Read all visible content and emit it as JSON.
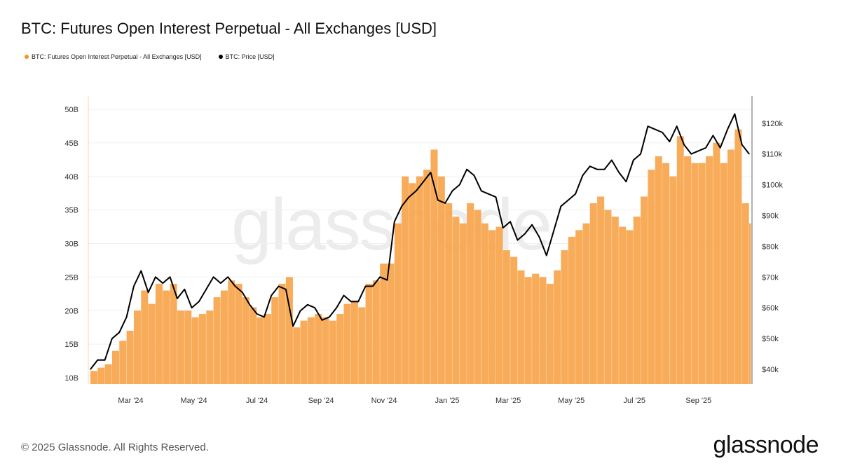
{
  "title": "BTC: Futures Open Interest Perpetual - All Exchanges [USD]",
  "legend": [
    {
      "label": "BTC: Futures Open Interest Perpetual - All Exchanges [USD]",
      "color": "#f7931a"
    },
    {
      "label": "BTC: Price [USD]",
      "color": "#000000"
    }
  ],
  "footer": "© 2025 Glassnode. All Rights Reserved.",
  "logo": "glassnode",
  "watermark": "glassnode",
  "chart_data": {
    "type": "bar+line",
    "title": "BTC: Futures Open Interest Perpetual - All Exchanges [USD]",
    "x_ticks": [
      "Mar '24",
      "May '24",
      "Jul '24",
      "Sep '24",
      "Nov '24",
      "Jan '25",
      "Mar '25",
      "May '25",
      "Jul '25",
      "Sep '25"
    ],
    "x_tick_dates": [
      "2024-03-01",
      "2024-05-01",
      "2024-07-01",
      "2024-09-01",
      "2024-11-01",
      "2025-01-01",
      "2025-03-01",
      "2025-05-01",
      "2025-07-01",
      "2025-09-01"
    ],
    "xlim": [
      "2024-01-20",
      "2025-10-22"
    ],
    "left_axis": {
      "ticks": [
        "10B",
        "15B",
        "20B",
        "25B",
        "30B",
        "35B",
        "40B",
        "45B",
        "50B"
      ],
      "ylim_billions": [
        9.2,
        51.2
      ]
    },
    "right_axis": {
      "ticks": [
        "$40k",
        "$50k",
        "$60k",
        "$70k",
        "$80k",
        "$90k",
        "$100k",
        "$110k",
        "$120k"
      ],
      "ylim_thousands_usd": [
        36,
        130
      ]
    },
    "grid": true,
    "legend_position": "top-left",
    "bar_color": "#f7a54c",
    "line_color": "#000000",
    "dates": [
      "2024-01-22",
      "2024-01-29",
      "2024-02-05",
      "2024-02-12",
      "2024-02-19",
      "2024-02-26",
      "2024-03-04",
      "2024-03-11",
      "2024-03-18",
      "2024-03-25",
      "2024-04-01",
      "2024-04-08",
      "2024-04-15",
      "2024-04-22",
      "2024-04-29",
      "2024-05-06",
      "2024-05-13",
      "2024-05-20",
      "2024-05-27",
      "2024-06-03",
      "2024-06-10",
      "2024-06-17",
      "2024-06-24",
      "2024-07-01",
      "2024-07-08",
      "2024-07-15",
      "2024-07-22",
      "2024-07-29",
      "2024-08-05",
      "2024-08-12",
      "2024-08-19",
      "2024-08-26",
      "2024-09-02",
      "2024-09-09",
      "2024-09-16",
      "2024-09-23",
      "2024-09-30",
      "2024-10-07",
      "2024-10-14",
      "2024-10-21",
      "2024-10-28",
      "2024-11-04",
      "2024-11-11",
      "2024-11-18",
      "2024-11-25",
      "2024-12-02",
      "2024-12-09",
      "2024-12-16",
      "2024-12-23",
      "2024-12-30",
      "2025-01-06",
      "2025-01-13",
      "2025-01-20",
      "2025-01-27",
      "2025-02-03",
      "2025-02-10",
      "2025-02-17",
      "2025-02-24",
      "2025-03-03",
      "2025-03-10",
      "2025-03-17",
      "2025-03-24",
      "2025-03-31",
      "2025-04-07",
      "2025-04-14",
      "2025-04-21",
      "2025-04-28",
      "2025-05-05",
      "2025-05-12",
      "2025-05-19",
      "2025-05-26",
      "2025-06-02",
      "2025-06-09",
      "2025-06-16",
      "2025-06-23",
      "2025-06-30",
      "2025-07-07",
      "2025-07-14",
      "2025-07-21",
      "2025-07-28",
      "2025-08-04",
      "2025-08-11",
      "2025-08-18",
      "2025-08-25",
      "2025-09-01",
      "2025-09-08",
      "2025-09-15",
      "2025-09-22",
      "2025-09-29",
      "2025-10-06",
      "2025-10-13",
      "2025-10-20"
    ],
    "series": [
      {
        "name": "BTC: Futures Open Interest Perpetual - All Exchanges [USD]",
        "unit": "billion USD",
        "axis": "left",
        "values": [
          11,
          11.5,
          12,
          14,
          15.5,
          17,
          20,
          23,
          21,
          24,
          23,
          24,
          20,
          20,
          19,
          19.5,
          20,
          22,
          23,
          24.5,
          24,
          22,
          20.5,
          19,
          19.5,
          22,
          24,
          25,
          17.5,
          18.5,
          19,
          19.5,
          19,
          18.5,
          19.5,
          21,
          21.5,
          20.5,
          24,
          24.5,
          27,
          27,
          33,
          40,
          39,
          40,
          41,
          44,
          40,
          36,
          34,
          33,
          36,
          35,
          33,
          32,
          32.5,
          29,
          28,
          26,
          25,
          25.5,
          25,
          24,
          26,
          29,
          31,
          32,
          33,
          36,
          37,
          35,
          34,
          32.5,
          32,
          34,
          37,
          41,
          43,
          42,
          40,
          46,
          43,
          42,
          42,
          43,
          45,
          42,
          44,
          47,
          36,
          33
        ]
      },
      {
        "name": "BTC: Price [USD]",
        "unit": "thousand USD",
        "axis": "right",
        "values": [
          40,
          43,
          43,
          50,
          52,
          57,
          67,
          72,
          65,
          70,
          68,
          70,
          63,
          66,
          60,
          62,
          66,
          70,
          68,
          70,
          67,
          65,
          61,
          58,
          57,
          64,
          67,
          66,
          54,
          59,
          61,
          60,
          56,
          57,
          60,
          64,
          62,
          62,
          67,
          67,
          70,
          69,
          88,
          93,
          96,
          98,
          101,
          104,
          95,
          94,
          98,
          100,
          105,
          103,
          98,
          97,
          96,
          86,
          88,
          82,
          84,
          87,
          83,
          77,
          85,
          93,
          95,
          97,
          103,
          106,
          105,
          105,
          108,
          104,
          101,
          108,
          110,
          119,
          118,
          117,
          114,
          119,
          113,
          110,
          111,
          112,
          116,
          112,
          118,
          123,
          113,
          110
        ]
      }
    ]
  }
}
